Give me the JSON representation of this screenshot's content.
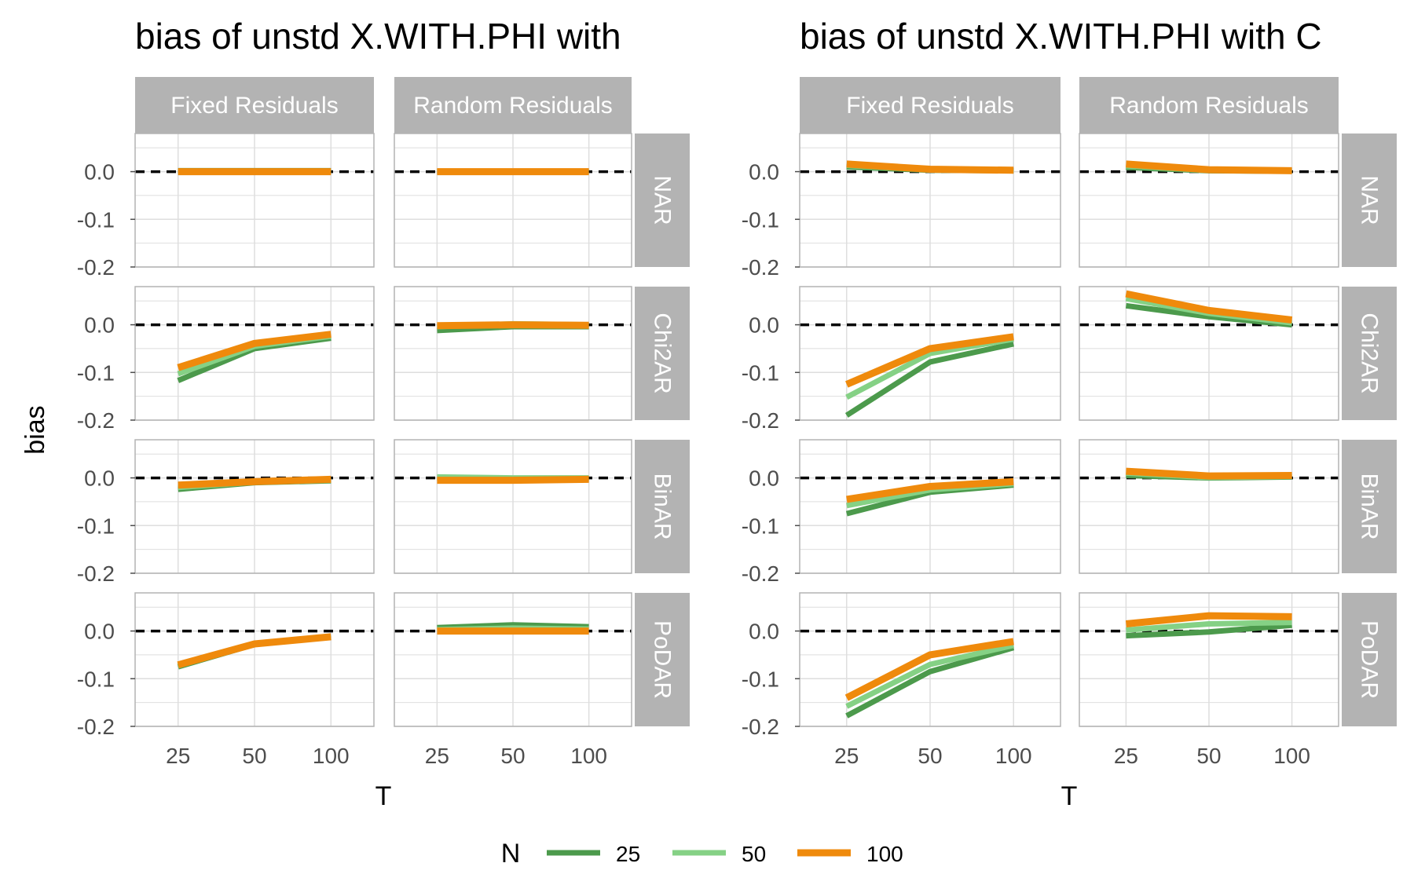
{
  "chart_data": [
    {
      "type": "line",
      "title": "bias of unstd X.WITH.PHI with",
      "xlabel": "T",
      "ylabel": "bias",
      "x": [
        25,
        50,
        100
      ],
      "x_tick_labels": [
        "25",
        "50",
        "100"
      ],
      "ylim": [
        -0.2,
        0.08
      ],
      "y_ticks": [
        0.0,
        -0.1,
        -0.2
      ],
      "y_tick_labels": [
        "0.0",
        "-0.1",
        "-0.2"
      ],
      "reference_line": {
        "y": 0,
        "style": "dashed",
        "color": "#000000"
      },
      "col_facets": [
        "Fixed Residuals",
        "Random Residuals"
      ],
      "row_facets": [
        "NAR",
        "Chi2AR",
        "BinAR",
        "PoDAR"
      ],
      "panels": [
        {
          "col": "Fixed Residuals",
          "row": "NAR",
          "series": [
            {
              "name": "25",
              "values": [
                0.002,
                0.002,
                0.002
              ]
            },
            {
              "name": "50",
              "values": [
                0.001,
                0.001,
                0.001
              ]
            },
            {
              "name": "100",
              "values": [
                0.0,
                0.0,
                0.0
              ]
            }
          ]
        },
        {
          "col": "Random Residuals",
          "row": "NAR",
          "series": [
            {
              "name": "25",
              "values": [
                0.001,
                0.001,
                0.001
              ]
            },
            {
              "name": "50",
              "values": [
                0.0,
                0.0,
                0.0
              ]
            },
            {
              "name": "100",
              "values": [
                0.0,
                0.0,
                0.0
              ]
            }
          ]
        },
        {
          "col": "Fixed Residuals",
          "row": "Chi2AR",
          "series": [
            {
              "name": "25",
              "values": [
                -0.117,
                -0.05,
                -0.028
              ]
            },
            {
              "name": "50",
              "values": [
                -0.103,
                -0.045,
                -0.024
              ]
            },
            {
              "name": "100",
              "values": [
                -0.09,
                -0.039,
                -0.02
              ]
            }
          ]
        },
        {
          "col": "Random Residuals",
          "row": "Chi2AR",
          "series": [
            {
              "name": "25",
              "values": [
                -0.012,
                -0.004,
                -0.004
              ]
            },
            {
              "name": "50",
              "values": [
                -0.004,
                0.002,
                0.0
              ]
            },
            {
              "name": "100",
              "values": [
                -0.002,
                0.0,
                -0.001
              ]
            }
          ]
        },
        {
          "col": "Fixed Residuals",
          "row": "BinAR",
          "series": [
            {
              "name": "25",
              "values": [
                -0.024,
                -0.01,
                -0.006
              ]
            },
            {
              "name": "50",
              "values": [
                -0.02,
                -0.009,
                -0.005
              ]
            },
            {
              "name": "100",
              "values": [
                -0.015,
                -0.008,
                -0.003
              ]
            }
          ]
        },
        {
          "col": "Random Residuals",
          "row": "BinAR",
          "series": [
            {
              "name": "25",
              "values": [
                0.001,
                -0.002,
                -0.001
              ]
            },
            {
              "name": "50",
              "values": [
                0.002,
                0.0,
                0.0
              ]
            },
            {
              "name": "100",
              "values": [
                -0.005,
                -0.005,
                -0.003
              ]
            }
          ]
        },
        {
          "col": "Fixed Residuals",
          "row": "PoDAR",
          "series": [
            {
              "name": "25",
              "values": [
                -0.075,
                -0.028,
                -0.013
              ]
            },
            {
              "name": "50",
              "values": [
                -0.073,
                -0.027,
                -0.013
              ]
            },
            {
              "name": "100",
              "values": [
                -0.071,
                -0.027,
                -0.012
              ]
            }
          ]
        },
        {
          "col": "Random Residuals",
          "row": "PoDAR",
          "series": [
            {
              "name": "25",
              "values": [
                0.007,
                0.013,
                0.009
              ]
            },
            {
              "name": "50",
              "values": [
                0.003,
                0.006,
                0.004
              ]
            },
            {
              "name": "100",
              "values": [
                0.0,
                0.0,
                0.0
              ]
            }
          ]
        }
      ]
    },
    {
      "type": "line",
      "title": "bias of unstd X.WITH.PHI with C",
      "xlabel": "T",
      "ylabel": "",
      "x": [
        25,
        50,
        100
      ],
      "x_tick_labels": [
        "25",
        "50",
        "100"
      ],
      "ylim": [
        -0.2,
        0.08
      ],
      "y_ticks": [
        0.0,
        -0.1,
        -0.2
      ],
      "y_tick_labels": [
        "0.0",
        "-0.1",
        "-0.2"
      ],
      "reference_line": {
        "y": 0,
        "style": "dashed",
        "color": "#000000"
      },
      "col_facets": [
        "Fixed Residuals",
        "Random Residuals"
      ],
      "row_facets": [
        "NAR",
        "Chi2AR",
        "BinAR",
        "PoDAR"
      ],
      "panels": [
        {
          "col": "Fixed Residuals",
          "row": "NAR",
          "series": [
            {
              "name": "25",
              "values": [
                0.01,
                0.003,
                0.002
              ]
            },
            {
              "name": "50",
              "values": [
                0.013,
                0.004,
                0.002
              ]
            },
            {
              "name": "100",
              "values": [
                0.016,
                0.005,
                0.003
              ]
            }
          ]
        },
        {
          "col": "Random Residuals",
          "row": "NAR",
          "series": [
            {
              "name": "25",
              "values": [
                0.009,
                0.002,
                0.001
              ]
            },
            {
              "name": "50",
              "values": [
                0.012,
                0.003,
                0.002
              ]
            },
            {
              "name": "100",
              "values": [
                0.016,
                0.004,
                0.002
              ]
            }
          ]
        },
        {
          "col": "Fixed Residuals",
          "row": "Chi2AR",
          "series": [
            {
              "name": "25",
              "values": [
                -0.19,
                -0.078,
                -0.04
              ]
            },
            {
              "name": "50",
              "values": [
                -0.152,
                -0.06,
                -0.03
              ]
            },
            {
              "name": "100",
              "values": [
                -0.125,
                -0.05,
                -0.025
              ]
            }
          ]
        },
        {
          "col": "Random Residuals",
          "row": "Chi2AR",
          "series": [
            {
              "name": "25",
              "values": [
                0.04,
                0.017,
                0.0
              ]
            },
            {
              "name": "50",
              "values": [
                0.055,
                0.024,
                0.004
              ]
            },
            {
              "name": "100",
              "values": [
                0.065,
                0.03,
                0.01
              ]
            }
          ]
        },
        {
          "col": "Fixed Residuals",
          "row": "BinAR",
          "series": [
            {
              "name": "25",
              "values": [
                -0.075,
                -0.03,
                -0.015
              ]
            },
            {
              "name": "50",
              "values": [
                -0.058,
                -0.025,
                -0.012
              ]
            },
            {
              "name": "100",
              "values": [
                -0.045,
                -0.018,
                -0.008
              ]
            }
          ]
        },
        {
          "col": "Random Residuals",
          "row": "BinAR",
          "series": [
            {
              "name": "25",
              "values": [
                0.005,
                0.0,
                0.002
              ]
            },
            {
              "name": "50",
              "values": [
                0.01,
                0.001,
                0.003
              ]
            },
            {
              "name": "100",
              "values": [
                0.014,
                0.004,
                0.005
              ]
            }
          ]
        },
        {
          "col": "Fixed Residuals",
          "row": "PoDAR",
          "series": [
            {
              "name": "25",
              "values": [
                -0.178,
                -0.085,
                -0.035
              ]
            },
            {
              "name": "50",
              "values": [
                -0.158,
                -0.07,
                -0.03
              ]
            },
            {
              "name": "100",
              "values": [
                -0.14,
                -0.05,
                -0.022
              ]
            }
          ]
        },
        {
          "col": "Random Residuals",
          "row": "PoDAR",
          "series": [
            {
              "name": "25",
              "values": [
                -0.01,
                -0.002,
                0.012
              ]
            },
            {
              "name": "50",
              "values": [
                0.002,
                0.015,
                0.018
              ]
            },
            {
              "name": "100",
              "values": [
                0.015,
                0.032,
                0.03
              ]
            }
          ]
        }
      ]
    }
  ],
  "legend": {
    "title": "N",
    "placement": "bottom",
    "entries": [
      {
        "label": "25",
        "color": "#4c9a4c"
      },
      {
        "label": "50",
        "color": "#85d185"
      },
      {
        "label": "100",
        "color": "#ef8a0c"
      }
    ]
  },
  "colors": {
    "strip_fill": "#b3b3b3",
    "strip_text": "#ffffff",
    "grid": "#dedede",
    "panel_border": "#b3b3b3"
  }
}
